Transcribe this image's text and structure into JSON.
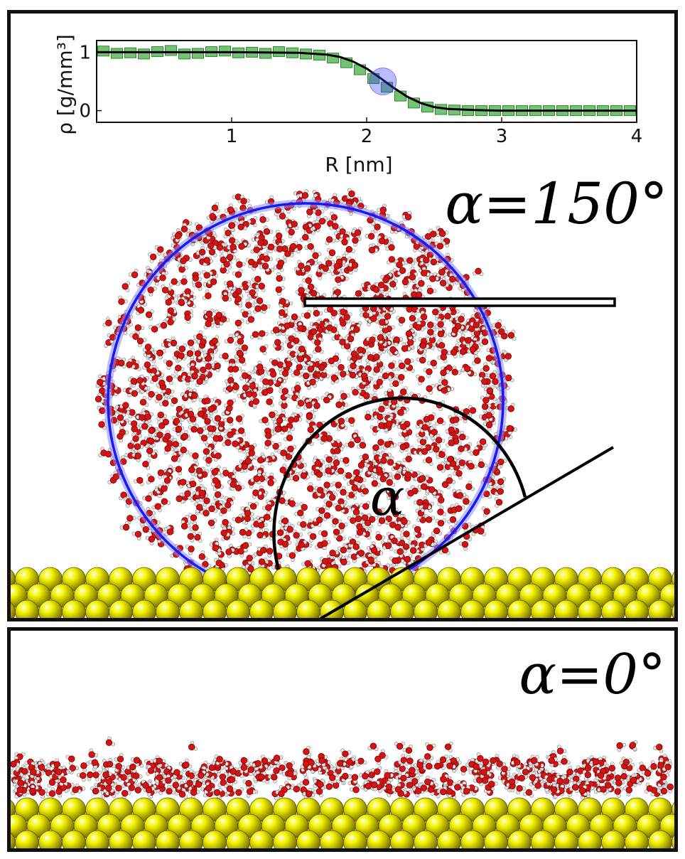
{
  "top_panel": {
    "angle_label": "α=150°",
    "alpha_symbol": "α"
  },
  "bottom_panel": {
    "angle_label": "α=0°"
  },
  "colors": {
    "oxygen": "#d41414",
    "hydrogen": "#e6e6e6",
    "gold": "#f2f200",
    "fit_circle": "#1a1af0",
    "density_points": "#3aa63a",
    "frame": "#111111"
  },
  "chart_data": {
    "type": "scatter",
    "xlabel": "R [nm]",
    "ylabel": "ρ [g/mm³]",
    "xlim": [
      0,
      4
    ],
    "ylim": [
      -0.2,
      1.2
    ],
    "xticks": [
      1,
      2,
      3,
      4
    ],
    "yticks": [
      0,
      1
    ],
    "highlight_point": {
      "x": 2.12,
      "y": 0.5
    },
    "series": [
      {
        "x": [
          0.05,
          0.15,
          0.25,
          0.35,
          0.45,
          0.55,
          0.65,
          0.75,
          0.85,
          0.95,
          1.05,
          1.15,
          1.25,
          1.35,
          1.45,
          1.55,
          1.65,
          1.75,
          1.85,
          1.95,
          2.05,
          2.15,
          2.25,
          2.35,
          2.45,
          2.55,
          2.65,
          2.75,
          2.85,
          2.95,
          3.05,
          3.15,
          3.25,
          3.35,
          3.45,
          3.55,
          3.65,
          3.75,
          3.85,
          3.95
        ],
        "y": [
          1.02,
          0.98,
          0.99,
          0.97,
          1.01,
          1.03,
          0.97,
          0.98,
          1.01,
          1.02,
          0.99,
          1.0,
          0.98,
          1.01,
          0.99,
          0.97,
          0.95,
          0.9,
          0.82,
          0.7,
          0.55,
          0.4,
          0.25,
          0.13,
          0.06,
          0.02,
          0.01,
          0.0,
          0.0,
          0.0,
          0.0,
          0.0,
          0.0,
          0.0,
          0.0,
          0.0,
          0.0,
          0.0,
          0.0,
          0.0
        ]
      },
      {
        "x": [
          0.0,
          0.5,
          1.0,
          1.5,
          1.7,
          1.8,
          1.9,
          2.0,
          2.1,
          2.2,
          2.3,
          2.4,
          2.5,
          2.6,
          2.8,
          3.0,
          3.5,
          4.0
        ],
        "y": [
          1.0,
          1.0,
          1.0,
          0.99,
          0.96,
          0.92,
          0.84,
          0.72,
          0.56,
          0.39,
          0.24,
          0.13,
          0.06,
          0.03,
          0.01,
          0.0,
          0.0,
          0.0
        ]
      }
    ]
  }
}
